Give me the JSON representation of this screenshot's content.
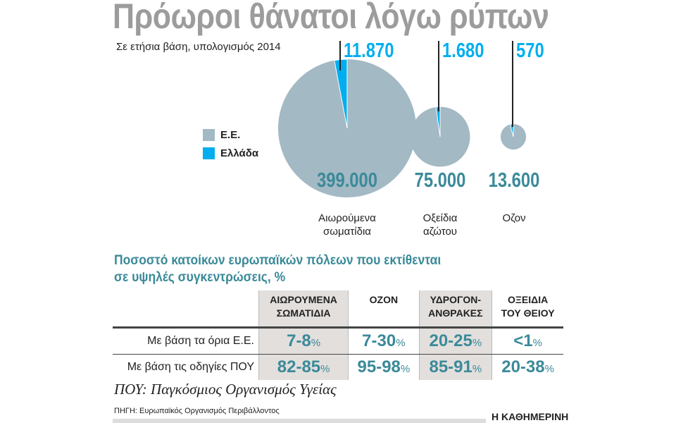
{
  "title": "Πρόωροι θάνατοι λόγω ρύπων",
  "subtitle": "Σε ετήσια βάση, υπολογισμός 2014",
  "legend": [
    {
      "label": "Ε.Ε.",
      "color": "#a3b9c4"
    },
    {
      "label": "Ελλάδα",
      "color": "#00aeef"
    }
  ],
  "chart_data": {
    "type": "pie",
    "title": "Πρόωροι θάνατοι λόγω ρύπων",
    "subtitle": "Σε ετήσια βάση, υπολογισμός 2014",
    "categories": [
      "Αιωρούμενα σωματίδια",
      "Οξείδια αζώτου",
      "Οζον"
    ],
    "category_labels": [
      [
        "Αιωρούμενα",
        "σωματίδια"
      ],
      [
        "Οξείδια",
        "αζώτου"
      ],
      [
        "Οζον",
        ""
      ]
    ],
    "series": [
      {
        "name": "Ε.Ε.",
        "values": [
          399000,
          75000,
          13600
        ],
        "labels": [
          "399.000",
          "75.000",
          "13.600"
        ],
        "color": "#a3b9c4"
      },
      {
        "name": "Ελλάδα",
        "values": [
          11870,
          1680,
          570
        ],
        "labels": [
          "11.870",
          "1.680",
          "570"
        ],
        "color": "#00aeef"
      }
    ],
    "legend_position": "left"
  },
  "table": {
    "heading": [
      "Ποσοστό κατοίκων ευρωπαϊκών πόλεων που εκτίθενται",
      "σε υψηλές συγκεντρώσεις, %"
    ],
    "columns": [
      [
        "ΑΙΩΡΟΥΜΕΝΑ",
        "ΣΩΜΑΤΙΔΙΑ"
      ],
      [
        "ΟΖΟΝ",
        ""
      ],
      [
        "ΥΔΡΟΓΟΝ-",
        "ΑΝΘΡΑΚΕΣ"
      ],
      [
        "ΟΞΕΙΔΙΑ",
        "ΤΟΥ ΘΕΙΟΥ"
      ]
    ],
    "rows": [
      {
        "label": "Με βάση τα όρια Ε.Ε.",
        "values": [
          "7-8",
          "7-30",
          "20-25",
          "<1"
        ]
      },
      {
        "label": "Με βάση τις οδηγίες ΠΟΥ",
        "values": [
          "82-85",
          "95-98",
          "85-91",
          "20-38"
        ]
      }
    ],
    "unit": "%"
  },
  "footnote": "ΠΟΥ: Παγκόσμιος Οργανισμός Υγείας",
  "source": "ΠΗΓΗ: Ευρωπαϊκός Οργανισμός Περιβάλλοντος",
  "brand": "Η ΚΑΘΗΜΕΡΙΝΗ"
}
